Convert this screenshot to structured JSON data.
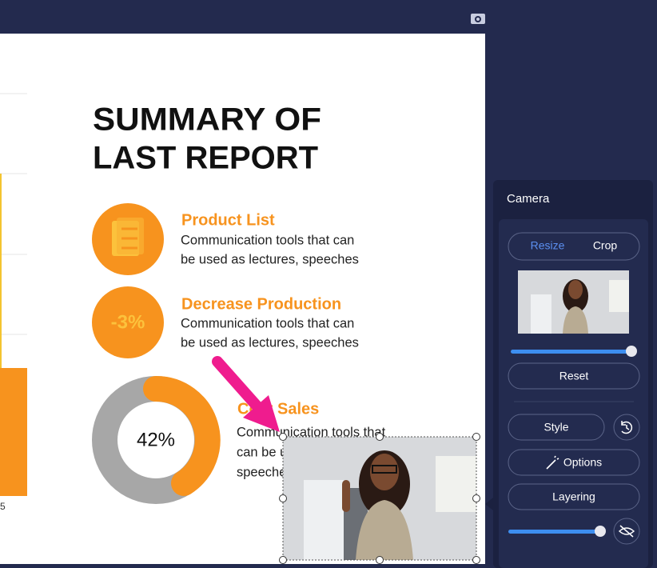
{
  "slide": {
    "title_lines": [
      "SUMMARY OF",
      "LAST REPORT"
    ],
    "items": [
      {
        "heading": "Product List",
        "lines": [
          "Communication tools that can",
          "be used as  lectures, speeches"
        ]
      },
      {
        "badge": "-3%",
        "heading": "Decrease Production",
        "lines": [
          "Communication tools that can",
          "be used as  lectures, speeches"
        ]
      },
      {
        "badge": "42%",
        "heading": "Cost Sales",
        "lines": [
          "Communication tools that",
          "can be used as lectures,",
          "speeches"
        ]
      }
    ],
    "chart_label": "5"
  },
  "panel": {
    "title": "Camera",
    "tabs": [
      "Resize",
      "Crop"
    ],
    "buttons": [
      "Reset",
      "Style",
      "Options",
      "Layering"
    ]
  }
}
